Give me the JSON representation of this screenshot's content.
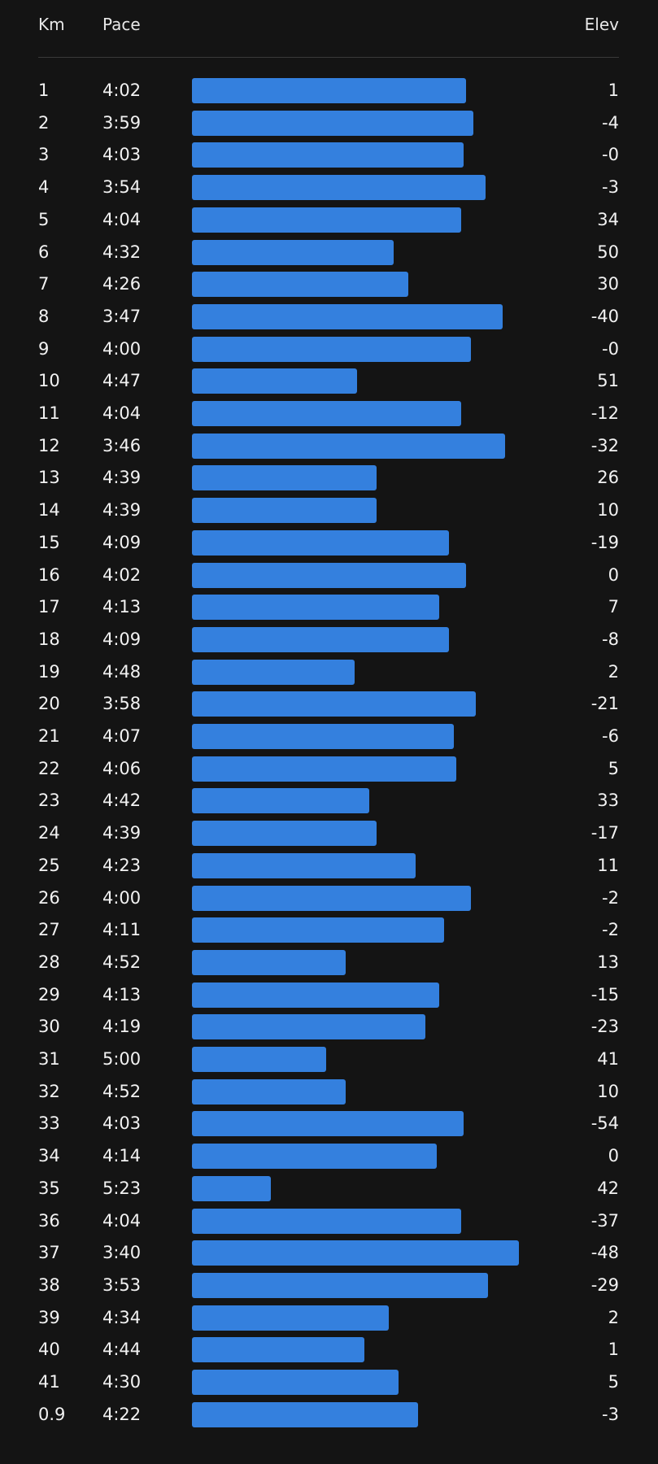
{
  "header": {
    "km": "Km",
    "pace": "Pace",
    "elev": "Elev"
  },
  "colors": {
    "bar": "#3480de",
    "background": "#141414"
  },
  "splits": [
    {
      "km": "1",
      "pace": "4:02",
      "elev": "1"
    },
    {
      "km": "2",
      "pace": "3:59",
      "elev": "-4"
    },
    {
      "km": "3",
      "pace": "4:03",
      "elev": "-0"
    },
    {
      "km": "4",
      "pace": "3:54",
      "elev": "-3"
    },
    {
      "km": "5",
      "pace": "4:04",
      "elev": "34"
    },
    {
      "km": "6",
      "pace": "4:32",
      "elev": "50"
    },
    {
      "km": "7",
      "pace": "4:26",
      "elev": "30"
    },
    {
      "km": "8",
      "pace": "3:47",
      "elev": "-40"
    },
    {
      "km": "9",
      "pace": "4:00",
      "elev": "-0"
    },
    {
      "km": "10",
      "pace": "4:47",
      "elev": "51"
    },
    {
      "km": "11",
      "pace": "4:04",
      "elev": "-12"
    },
    {
      "km": "12",
      "pace": "3:46",
      "elev": "-32"
    },
    {
      "km": "13",
      "pace": "4:39",
      "elev": "26"
    },
    {
      "km": "14",
      "pace": "4:39",
      "elev": "10"
    },
    {
      "km": "15",
      "pace": "4:09",
      "elev": "-19"
    },
    {
      "km": "16",
      "pace": "4:02",
      "elev": "0"
    },
    {
      "km": "17",
      "pace": "4:13",
      "elev": "7"
    },
    {
      "km": "18",
      "pace": "4:09",
      "elev": "-8"
    },
    {
      "km": "19",
      "pace": "4:48",
      "elev": "2"
    },
    {
      "km": "20",
      "pace": "3:58",
      "elev": "-21"
    },
    {
      "km": "21",
      "pace": "4:07",
      "elev": "-6"
    },
    {
      "km": "22",
      "pace": "4:06",
      "elev": "5"
    },
    {
      "km": "23",
      "pace": "4:42",
      "elev": "33"
    },
    {
      "km": "24",
      "pace": "4:39",
      "elev": "-17"
    },
    {
      "km": "25",
      "pace": "4:23",
      "elev": "11"
    },
    {
      "km": "26",
      "pace": "4:00",
      "elev": "-2"
    },
    {
      "km": "27",
      "pace": "4:11",
      "elev": "-2"
    },
    {
      "km": "28",
      "pace": "4:52",
      "elev": "13"
    },
    {
      "km": "29",
      "pace": "4:13",
      "elev": "-15"
    },
    {
      "km": "30",
      "pace": "4:19",
      "elev": "-23"
    },
    {
      "km": "31",
      "pace": "5:00",
      "elev": "41"
    },
    {
      "km": "32",
      "pace": "4:52",
      "elev": "10"
    },
    {
      "km": "33",
      "pace": "4:03",
      "elev": "-54"
    },
    {
      "km": "34",
      "pace": "4:14",
      "elev": "0"
    },
    {
      "km": "35",
      "pace": "5:23",
      "elev": "42"
    },
    {
      "km": "36",
      "pace": "4:04",
      "elev": "-37"
    },
    {
      "km": "37",
      "pace": "3:40",
      "elev": "-48"
    },
    {
      "km": "38",
      "pace": "3:53",
      "elev": "-29"
    },
    {
      "km": "39",
      "pace": "4:34",
      "elev": "2"
    },
    {
      "km": "40",
      "pace": "4:44",
      "elev": "1"
    },
    {
      "km": "41",
      "pace": "4:30",
      "elev": "5"
    },
    {
      "km": "0.9",
      "pace": "4:22",
      "elev": "-3"
    }
  ]
}
